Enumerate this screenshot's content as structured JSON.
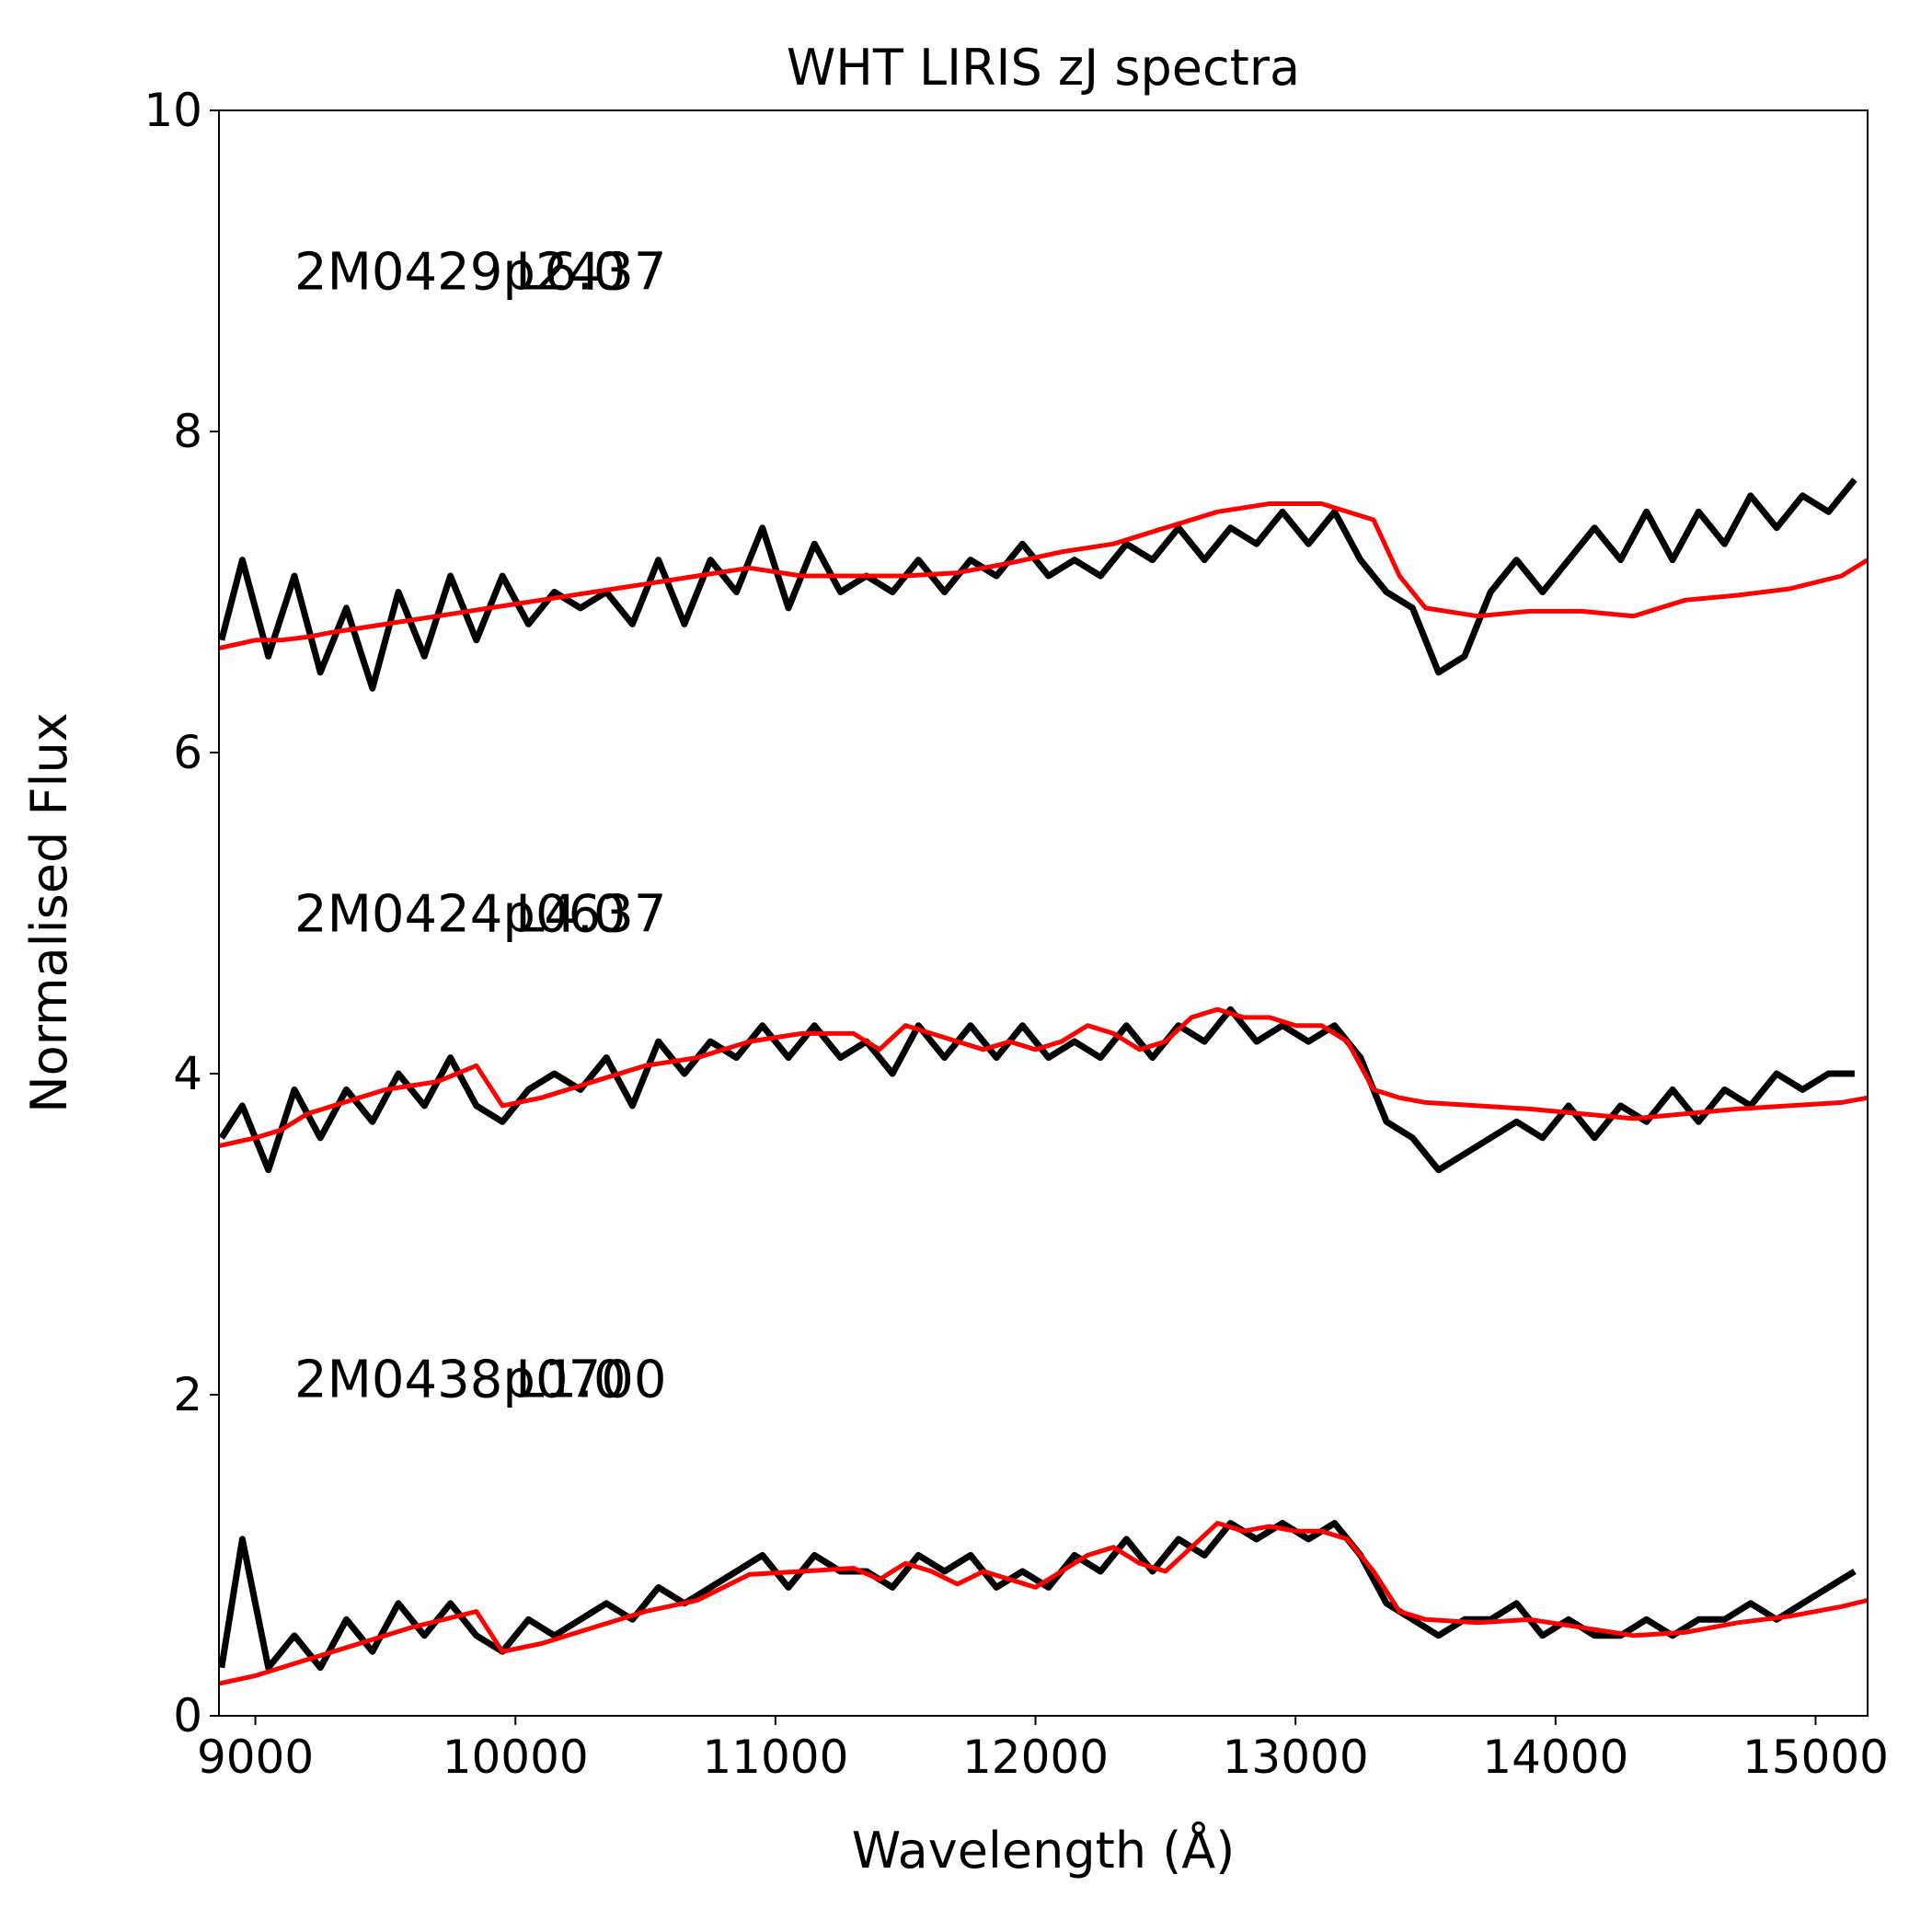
{
  "chart_data": {
    "type": "line",
    "title": "WHT LIRIS zJ spectra",
    "xlabel": "Wavelength (Å)",
    "ylabel": "Normalised Flux",
    "xlim": [
      8860,
      15200
    ],
    "ylim": [
      0,
      10
    ],
    "xticks": [
      9000,
      10000,
      11000,
      12000,
      13000,
      14000,
      15000
    ],
    "yticks": [
      0,
      2,
      4,
      6,
      8,
      10
    ],
    "xtick_labels": [
      "9000",
      "10000",
      "11000",
      "12000",
      "13000",
      "14000",
      "15000"
    ],
    "ytick_labels": [
      "0",
      "2",
      "4",
      "6",
      "8",
      "10"
    ],
    "grid": false,
    "colors": {
      "observed": "#000000",
      "template": "#ff0000",
      "axes": "#000000"
    },
    "series": [
      {
        "name": "2M0429p2437",
        "spectral_type": "L6.0",
        "label_pos": [
          9150,
          9.0
        ],
        "observed": {
          "x": [
            8870,
            8950,
            9050,
            9150,
            9250,
            9350,
            9450,
            9550,
            9650,
            9750,
            9850,
            9950,
            10050,
            10150,
            10250,
            10350,
            10450,
            10550,
            10650,
            10750,
            10850,
            10950,
            11050,
            11150,
            11250,
            11350,
            11450,
            11550,
            11650,
            11750,
            11850,
            11950,
            12050,
            12150,
            12250,
            12350,
            12450,
            12550,
            12650,
            12750,
            12850,
            12950,
            13050,
            13150,
            13250,
            13350,
            13450,
            13550,
            13650,
            13750,
            13850,
            13950,
            14050,
            14150,
            14250,
            14350,
            14450,
            14550,
            14650,
            14750,
            14850,
            14950,
            15050,
            15150
          ],
          "y": [
            6.7,
            7.2,
            6.6,
            7.1,
            6.5,
            6.9,
            6.4,
            7.0,
            6.6,
            7.1,
            6.7,
            7.1,
            6.8,
            7.0,
            6.9,
            7.0,
            6.8,
            7.2,
            6.8,
            7.2,
            7.0,
            7.4,
            6.9,
            7.3,
            7.0,
            7.1,
            7.0,
            7.2,
            7.0,
            7.2,
            7.1,
            7.3,
            7.1,
            7.2,
            7.1,
            7.3,
            7.2,
            7.4,
            7.2,
            7.4,
            7.3,
            7.5,
            7.3,
            7.5,
            7.2,
            7.0,
            6.9,
            6.5,
            6.6,
            7.0,
            7.2,
            7.0,
            7.2,
            7.4,
            7.2,
            7.5,
            7.2,
            7.5,
            7.3,
            7.6,
            7.4,
            7.6,
            7.5,
            7.7
          ]
        },
        "template": {
          "x": [
            8860,
            9000,
            9100,
            9200,
            9300,
            9500,
            9700,
            9900,
            10100,
            10300,
            10500,
            10700,
            10900,
            11100,
            11300,
            11500,
            11700,
            11900,
            12100,
            12300,
            12500,
            12700,
            12900,
            13100,
            13300,
            13400,
            13500,
            13700,
            13900,
            14100,
            14300,
            14500,
            14700,
            14900,
            15100,
            15200
          ],
          "y": [
            6.65,
            6.7,
            6.7,
            6.72,
            6.75,
            6.8,
            6.85,
            6.9,
            6.95,
            7.0,
            7.05,
            7.1,
            7.15,
            7.1,
            7.1,
            7.1,
            7.12,
            7.18,
            7.25,
            7.3,
            7.4,
            7.5,
            7.55,
            7.55,
            7.45,
            7.1,
            6.9,
            6.85,
            6.88,
            6.88,
            6.85,
            6.95,
            6.98,
            7.02,
            7.1,
            7.2
          ]
        }
      },
      {
        "name": "2M0424p0637",
        "spectral_type": "L4.0",
        "label_pos": [
          9150,
          5.0
        ],
        "observed": {
          "x": [
            8870,
            8950,
            9050,
            9150,
            9250,
            9350,
            9450,
            9550,
            9650,
            9750,
            9850,
            9950,
            10050,
            10150,
            10250,
            10350,
            10450,
            10550,
            10650,
            10750,
            10850,
            10950,
            11050,
            11150,
            11250,
            11350,
            11450,
            11550,
            11650,
            11750,
            11850,
            11950,
            12050,
            12150,
            12250,
            12350,
            12450,
            12550,
            12650,
            12750,
            12850,
            12950,
            13050,
            13150,
            13250,
            13350,
            13450,
            13550,
            13650,
            13750,
            13850,
            13950,
            14050,
            14150,
            14250,
            14350,
            14450,
            14550,
            14650,
            14750,
            14850,
            14950,
            15050,
            15150
          ],
          "y": [
            3.6,
            3.8,
            3.4,
            3.9,
            3.6,
            3.9,
            3.7,
            4.0,
            3.8,
            4.1,
            3.8,
            3.7,
            3.9,
            4.0,
            3.9,
            4.1,
            3.8,
            4.2,
            4.0,
            4.2,
            4.1,
            4.3,
            4.1,
            4.3,
            4.1,
            4.2,
            4.0,
            4.3,
            4.1,
            4.3,
            4.1,
            4.3,
            4.1,
            4.2,
            4.1,
            4.3,
            4.1,
            4.3,
            4.2,
            4.4,
            4.2,
            4.3,
            4.2,
            4.3,
            4.1,
            3.7,
            3.6,
            3.4,
            3.5,
            3.6,
            3.7,
            3.6,
            3.8,
            3.6,
            3.8,
            3.7,
            3.9,
            3.7,
            3.9,
            3.8,
            4.0,
            3.9,
            4.0,
            4.0
          ]
        },
        "template": {
          "x": [
            8860,
            9000,
            9100,
            9200,
            9300,
            9500,
            9700,
            9850,
            9950,
            10100,
            10300,
            10500,
            10700,
            10900,
            11100,
            11300,
            11400,
            11500,
            11600,
            11700,
            11800,
            11900,
            12000,
            12100,
            12200,
            12300,
            12400,
            12500,
            12600,
            12700,
            12800,
            12900,
            13000,
            13100,
            13200,
            13300,
            13400,
            13500,
            13700,
            13900,
            14100,
            14300,
            14500,
            14700,
            14900,
            15100,
            15200
          ],
          "y": [
            3.55,
            3.6,
            3.65,
            3.75,
            3.8,
            3.9,
            3.95,
            4.05,
            3.8,
            3.85,
            3.95,
            4.05,
            4.1,
            4.2,
            4.25,
            4.25,
            4.15,
            4.3,
            4.25,
            4.2,
            4.15,
            4.2,
            4.15,
            4.2,
            4.3,
            4.25,
            4.15,
            4.2,
            4.35,
            4.4,
            4.35,
            4.35,
            4.3,
            4.3,
            4.2,
            3.9,
            3.85,
            3.82,
            3.8,
            3.78,
            3.75,
            3.72,
            3.75,
            3.78,
            3.8,
            3.82,
            3.85
          ]
        }
      },
      {
        "name": "2M0438p0700",
        "spectral_type": "L1.0",
        "label_pos": [
          9150,
          2.1
        ],
        "observed": {
          "x": [
            8870,
            8950,
            9050,
            9150,
            9250,
            9350,
            9450,
            9550,
            9650,
            9750,
            9850,
            9950,
            10050,
            10150,
            10250,
            10350,
            10450,
            10550,
            10650,
            10750,
            10850,
            10950,
            11050,
            11150,
            11250,
            11350,
            11450,
            11550,
            11650,
            11750,
            11850,
            11950,
            12050,
            12150,
            12250,
            12350,
            12450,
            12550,
            12650,
            12750,
            12850,
            12950,
            13050,
            13150,
            13250,
            13350,
            13450,
            13550,
            13650,
            13750,
            13850,
            13950,
            14050,
            14150,
            14250,
            14350,
            14450,
            14550,
            14650,
            14750,
            14850,
            14950,
            15050,
            15150
          ],
          "y": [
            0.3,
            1.1,
            0.3,
            0.5,
            0.3,
            0.6,
            0.4,
            0.7,
            0.5,
            0.7,
            0.5,
            0.4,
            0.6,
            0.5,
            0.6,
            0.7,
            0.6,
            0.8,
            0.7,
            0.8,
            0.9,
            1.0,
            0.8,
            1.0,
            0.9,
            0.9,
            0.8,
            1.0,
            0.9,
            1.0,
            0.8,
            0.9,
            0.8,
            1.0,
            0.9,
            1.1,
            0.9,
            1.1,
            1.0,
            1.2,
            1.1,
            1.2,
            1.1,
            1.2,
            1.0,
            0.7,
            0.6,
            0.5,
            0.6,
            0.6,
            0.7,
            0.5,
            0.6,
            0.5,
            0.5,
            0.6,
            0.5,
            0.6,
            0.6,
            0.7,
            0.6,
            0.7,
            0.8,
            0.9
          ]
        },
        "template": {
          "x": [
            8860,
            9000,
            9200,
            9400,
            9600,
            9850,
            9950,
            10100,
            10300,
            10500,
            10700,
            10900,
            11100,
            11300,
            11400,
            11500,
            11600,
            11700,
            11800,
            11900,
            12000,
            12100,
            12200,
            12300,
            12400,
            12500,
            12600,
            12700,
            12800,
            12900,
            13000,
            13100,
            13200,
            13300,
            13400,
            13500,
            13700,
            13900,
            14100,
            14300,
            14500,
            14700,
            14900,
            15100,
            15200
          ],
          "y": [
            0.2,
            0.25,
            0.35,
            0.45,
            0.55,
            0.65,
            0.4,
            0.45,
            0.55,
            0.65,
            0.72,
            0.88,
            0.9,
            0.92,
            0.85,
            0.95,
            0.9,
            0.82,
            0.9,
            0.85,
            0.8,
            0.9,
            1.0,
            1.05,
            0.95,
            0.9,
            1.05,
            1.2,
            1.15,
            1.18,
            1.15,
            1.15,
            1.1,
            0.9,
            0.65,
            0.6,
            0.58,
            0.6,
            0.55,
            0.5,
            0.52,
            0.58,
            0.62,
            0.68,
            0.72
          ]
        }
      }
    ]
  }
}
